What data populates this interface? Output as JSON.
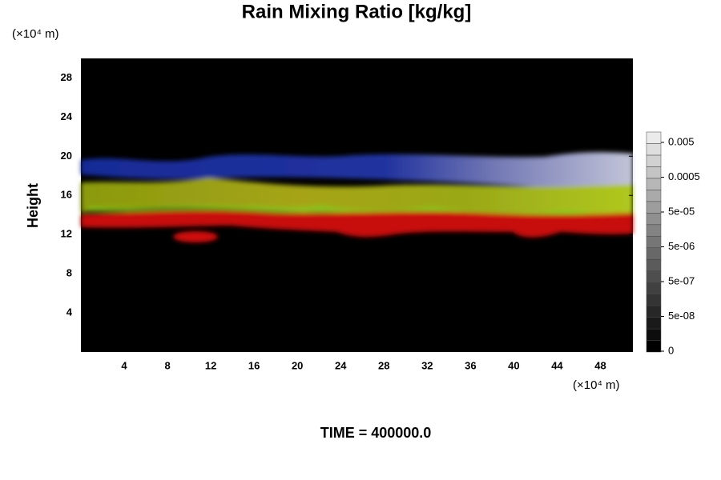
{
  "chart_data": {
    "type": "heatmap",
    "title": "Rain Mixing Ratio [kg/kg]",
    "y_unit": "(×10⁴ m)",
    "x_unit": "(×10⁴ m)",
    "ylabel": "Height",
    "annotation": "TIME = 400000.0",
    "xlim": [
      0,
      51
    ],
    "ylim": [
      0,
      30
    ],
    "xticks": [
      4,
      8,
      12,
      16,
      20,
      24,
      28,
      32,
      36,
      40,
      44,
      48
    ],
    "yticks": [
      4,
      8,
      12,
      16,
      20,
      24,
      28
    ],
    "zticks": [
      0,
      {
        "value": 5e-08,
        "label": "5e-08"
      },
      {
        "value": 5e-07,
        "label": "5e-07"
      },
      {
        "value": 5e-06,
        "label": "5e-06"
      },
      {
        "value": 5e-05,
        "label": "5e-05"
      },
      0.0005,
      0.005
    ]
  }
}
